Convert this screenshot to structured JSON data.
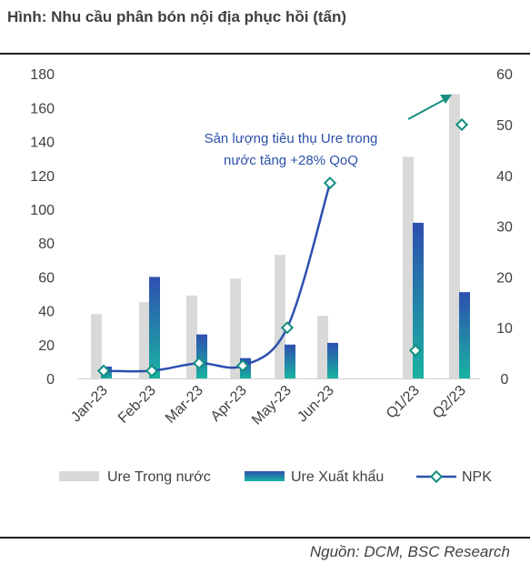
{
  "title": "Hình: Nhu cầu phân bón nội địa phục hồi (tấn)",
  "source": "Nguồn: DCM, BSC Research",
  "colors": {
    "domestic": "#d9d9d9",
    "export_top": "#2e4fb0",
    "export_bottom": "#19b3a1",
    "npk_line": "#2e4fb0",
    "npk_marker": "#168f80",
    "arrow": "#168f80"
  },
  "chart_data": {
    "type": "bar",
    "categories": [
      "Jan-23",
      "Feb-23",
      "Mar-23",
      "Apr-23",
      "May-23",
      "Jun-23",
      "Q1/23",
      "Q2/23"
    ],
    "series": [
      {
        "name": "Ure Trong nước",
        "axis": "left",
        "type": "bar",
        "values": [
          38,
          45,
          49,
          59,
          73,
          37,
          131,
          168
        ]
      },
      {
        "name": "Ure Xuất khẩu",
        "axis": "left",
        "type": "bar",
        "values": [
          7,
          60,
          26,
          12,
          20,
          21,
          92,
          51
        ]
      },
      {
        "name": "NPK",
        "axis": "right",
        "type": "line",
        "values": [
          1.5,
          1.5,
          3,
          2.5,
          10,
          38.5,
          5.5,
          50
        ]
      }
    ],
    "y_left": {
      "min": 0,
      "max": 180,
      "ticks": [
        0,
        20,
        40,
        60,
        80,
        100,
        120,
        140,
        160,
        180
      ]
    },
    "y_right": {
      "min": 0,
      "max": 60,
      "ticks": [
        0,
        10,
        20,
        30,
        40,
        50,
        60
      ]
    },
    "legend_position": "bottom",
    "grid": false,
    "annotation": "Sản lượng tiêu thụ Ure trong nước tăng +28% QoQ",
    "annotation_lines": [
      "Sản lượng tiêu thụ Ure trong",
      "nước tăng +28% QoQ"
    ]
  }
}
